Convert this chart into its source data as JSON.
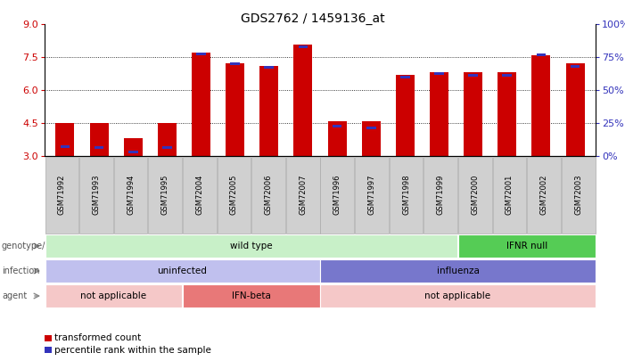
{
  "title": "GDS2762 / 1459136_at",
  "samples": [
    "GSM71992",
    "GSM71993",
    "GSM71994",
    "GSM71995",
    "GSM72004",
    "GSM72005",
    "GSM72006",
    "GSM72007",
    "GSM71996",
    "GSM71997",
    "GSM71998",
    "GSM71999",
    "GSM72000",
    "GSM72001",
    "GSM72002",
    "GSM72003"
  ],
  "red_values": [
    4.5,
    4.5,
    3.8,
    4.5,
    7.7,
    7.2,
    7.1,
    8.05,
    4.6,
    4.6,
    6.7,
    6.8,
    6.8,
    6.8,
    7.6,
    7.2
  ],
  "blue_values": [
    3.42,
    3.4,
    3.2,
    3.4,
    7.65,
    7.18,
    7.05,
    7.95,
    4.35,
    4.28,
    6.6,
    6.75,
    6.65,
    6.65,
    7.6,
    7.08
  ],
  "y_min": 3.0,
  "y_max": 9.0,
  "y_ticks": [
    3,
    4.5,
    6,
    7.5,
    9
  ],
  "y2_ticks": [
    0,
    25,
    50,
    75,
    100
  ],
  "red_color": "#cc0000",
  "blue_color": "#3333bb",
  "bar_width": 0.55,
  "blue_bar_width": 0.28,
  "annotation_rows": [
    {
      "label": "genotype/variation",
      "segments": [
        {
          "text": "wild type",
          "start": 0,
          "end": 11,
          "color": "#c8f0c8"
        },
        {
          "text": "IFNR null",
          "start": 12,
          "end": 15,
          "color": "#55cc55"
        }
      ]
    },
    {
      "label": "infection",
      "segments": [
        {
          "text": "uninfected",
          "start": 0,
          "end": 7,
          "color": "#c0c0ee"
        },
        {
          "text": "influenza",
          "start": 8,
          "end": 15,
          "color": "#7777cc"
        }
      ]
    },
    {
      "label": "agent",
      "segments": [
        {
          "text": "not applicable",
          "start": 0,
          "end": 3,
          "color": "#f5c8c8"
        },
        {
          "text": "IFN-beta",
          "start": 4,
          "end": 7,
          "color": "#e87878"
        },
        {
          "text": "not applicable",
          "start": 8,
          "end": 15,
          "color": "#f5c8c8"
        }
      ]
    }
  ],
  "legend": [
    {
      "label": "transformed count",
      "color": "#cc0000"
    },
    {
      "label": "percentile rank within the sample",
      "color": "#3333bb"
    }
  ],
  "grid_lines": [
    4.5,
    6.0,
    7.5
  ],
  "tick_bg_color": "#d0d0d0",
  "tick_border_color": "#aaaaaa"
}
